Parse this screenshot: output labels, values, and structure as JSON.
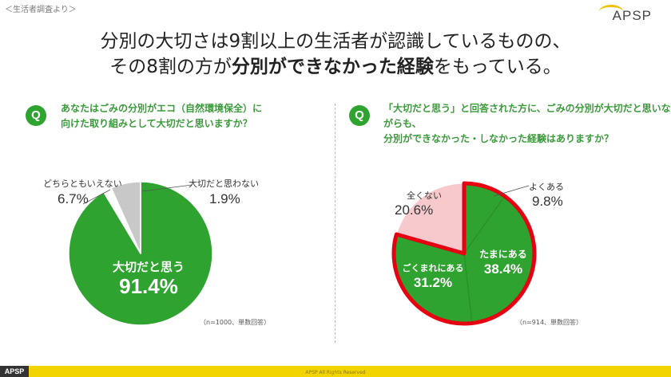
{
  "source_label": "＜生活者調査より＞",
  "logo": "APSP",
  "headline": {
    "line1": "分別の大切さは9割以上の生活者が認識しているものの、",
    "line2_a": "その8割の方が",
    "line2_b": "分別ができなかった経験",
    "line2_c": "をもっている。"
  },
  "chart_data": [
    {
      "type": "pie",
      "badge": "Q",
      "question_line1": "あなたはごみの分別がエコ（自然環境保全）に",
      "question_line2": "向けた取り組みとして大切だと思いますか？",
      "slices": [
        {
          "label": "大切だと思う",
          "value": 91.4,
          "value_text": "91.4%",
          "color": "#2fa32f"
        },
        {
          "label": "大切だと思わない",
          "value": 1.9,
          "value_text": "1.9%",
          "color": "#ffffff"
        },
        {
          "label": "どちらともいえない",
          "value": 6.7,
          "value_text": "6.7%",
          "color": "#c8c8c8"
        }
      ],
      "note": "（n=1000、単数回答）"
    },
    {
      "type": "pie",
      "badge": "Q",
      "question_line1": "「大切だと思う」と回答された方に、ごみの分別が大切だと思いながらも、",
      "question_line2": "分別ができなかった・しなかった経験はありますか？",
      "slices": [
        {
          "label": "よくある",
          "value": 9.8,
          "value_text": "9.8%",
          "color": "#2fa32f"
        },
        {
          "label": "たまにある",
          "value": 38.4,
          "value_text": "38.4%",
          "color": "#2fa32f"
        },
        {
          "label": "ごくまれにある",
          "value": 31.2,
          "value_text": "31.2%",
          "color": "#2fa32f"
        },
        {
          "label": "全くない",
          "value": 20.6,
          "value_text": "20.6%",
          "color": "#f7c9cc"
        }
      ],
      "highlight_color": "#e60012",
      "note": "（n=914、単数回答）"
    }
  ],
  "footer": {
    "tag": "APSP",
    "copyright": "APSP All Rights Reserved"
  }
}
